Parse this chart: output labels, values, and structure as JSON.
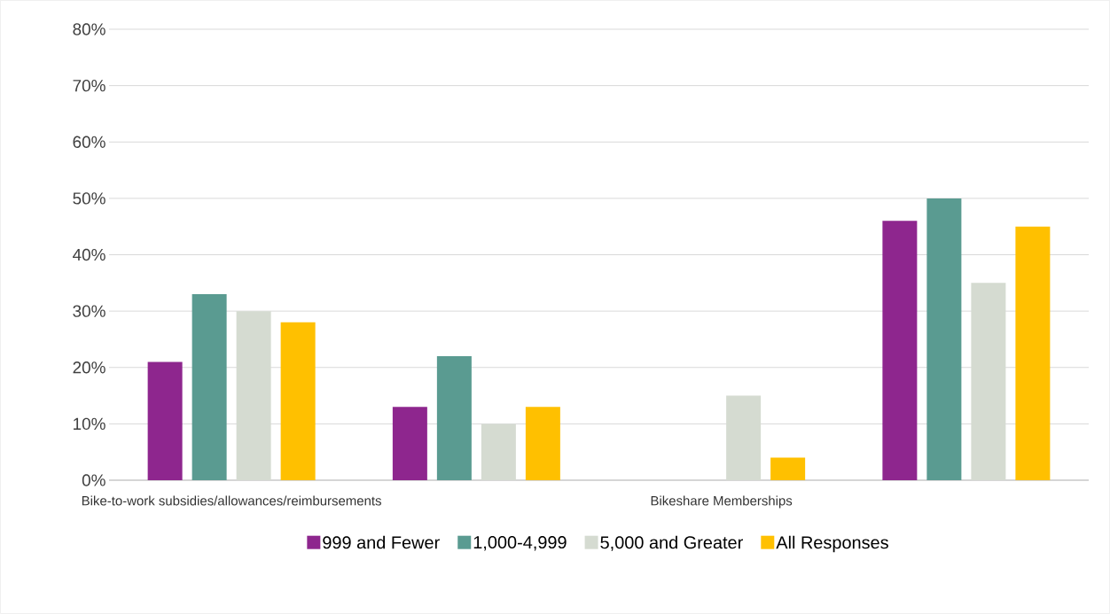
{
  "chart_data": {
    "type": "bar",
    "categories": [
      "Bike-to-work subsidies/allowances/reimbursements",
      null,
      "Bikeshare Memberships",
      null
    ],
    "series": [
      {
        "name": "999 and Fewer",
        "color": "#8e268e",
        "values": [
          21,
          13,
          0,
          46
        ]
      },
      {
        "name": "1,000-4,999",
        "color": "#5a9b91",
        "values": [
          33,
          22,
          0,
          50
        ]
      },
      {
        "name": "5,000 and Greater",
        "color": "#d5dbd1",
        "values": [
          30,
          10,
          15,
          35
        ]
      },
      {
        "name": "All Responses",
        "color": "#ffc000",
        "values": [
          28,
          13,
          4,
          45
        ]
      }
    ],
    "ylim": [
      0,
      80
    ],
    "yticks": [
      {
        "value": 0,
        "label": "0%"
      },
      {
        "value": 10,
        "label": "10%"
      },
      {
        "value": 20,
        "label": "20%"
      },
      {
        "value": 30,
        "label": "30%"
      },
      {
        "value": 40,
        "label": "40%"
      },
      {
        "value": 50,
        "label": "50%"
      },
      {
        "value": 60,
        "label": "60%"
      },
      {
        "value": 70,
        "label": "70%"
      },
      {
        "value": 80,
        "label": "80%"
      }
    ],
    "grid": "y",
    "legend": "bottom"
  }
}
